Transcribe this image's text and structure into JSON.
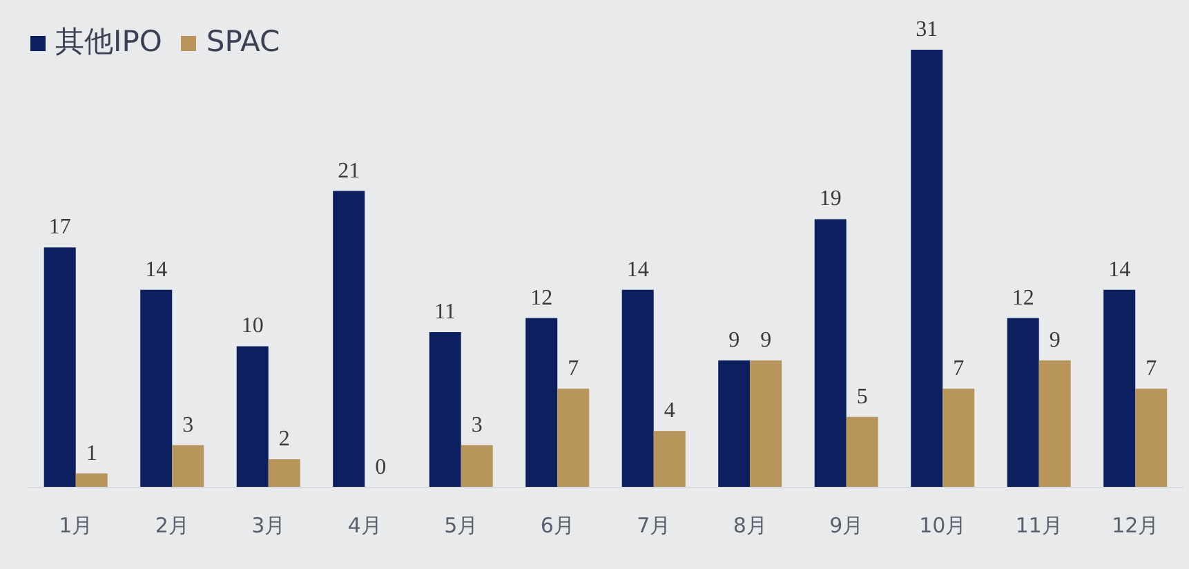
{
  "chart_data": {
    "type": "bar",
    "categories": [
      "1月",
      "2月",
      "3月",
      "4月",
      "5月",
      "6月",
      "7月",
      "8月",
      "9月",
      "10月",
      "11月",
      "12月"
    ],
    "series": [
      {
        "name": "其他IPO",
        "color": "#0c1f5e",
        "values": [
          17,
          14,
          10,
          21,
          11,
          12,
          14,
          9,
          19,
          31,
          12,
          14
        ]
      },
      {
        "name": "SPAC",
        "color": "#b8955a",
        "values": [
          1,
          3,
          2,
          0,
          3,
          7,
          4,
          9,
          5,
          7,
          9,
          7
        ]
      }
    ],
    "data_labels": true,
    "legend": "top left"
  }
}
